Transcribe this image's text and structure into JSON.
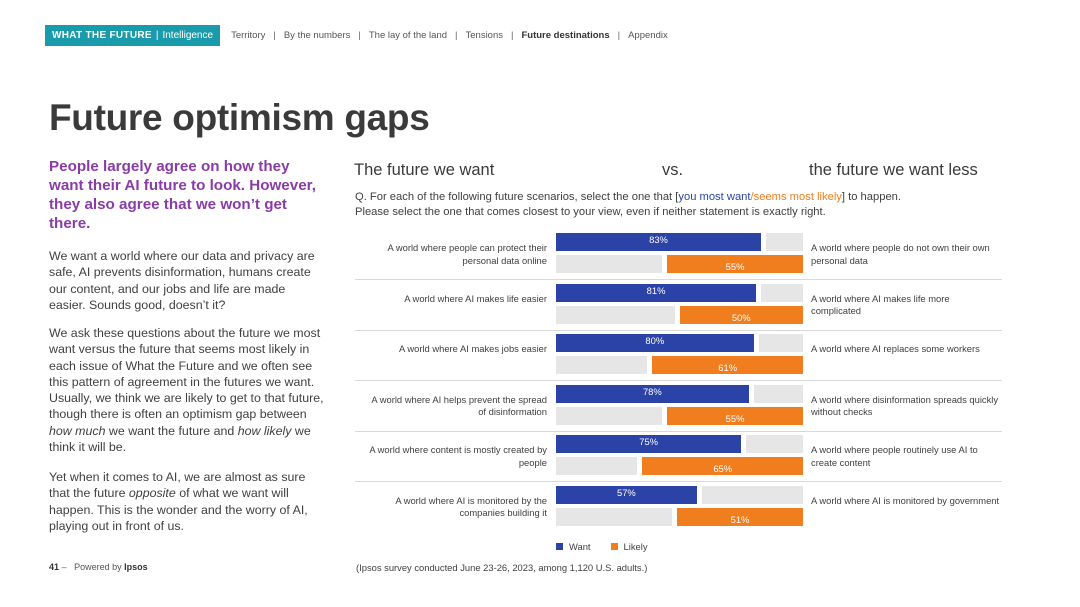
{
  "header": {
    "brand": "WHAT THE FUTURE",
    "brand_sub": "Intelligence",
    "nav": [
      {
        "label": "Territory",
        "active": false
      },
      {
        "label": "By the numbers",
        "active": false
      },
      {
        "label": "The lay of the land",
        "active": false
      },
      {
        "label": "Tensions",
        "active": false
      },
      {
        "label": "Future destinations",
        "active": true
      },
      {
        "label": "Appendix",
        "active": false
      }
    ]
  },
  "page_title": "Future optimism gaps",
  "lede": "People largely agree on how they want their AI future to look. However, they also agree that we won’t get there.",
  "body": {
    "p1": "We want a world where our data and privacy are safe, AI prevents disinformation, humans create our content, and our jobs and life are made easier. Sounds good, doesn’t it?",
    "p2_a": "We ask these questions about the future we most want versus the future that seems most likely in each issue of What the Future and we often see this pattern of agreement in the futures we want. Usually, we think we are likely to get to that future, though there is often an optimism gap between ",
    "p2_em1": "how much",
    "p2_b": " we want the future and ",
    "p2_em2": "how likely",
    "p2_c": " we think it will be.",
    "p3_a": "Yet when it comes to AI, we are almost as sure that the future ",
    "p3_em": "opposite",
    "p3_b": " of what we want will happen. This is the wonder and the worry of AI, playing out in front of us."
  },
  "footer": {
    "page": "41",
    "dash": "–",
    "powered": "Powered by",
    "company": "Ipsos"
  },
  "chart_data": {
    "type": "bar",
    "title_left": "The future we want",
    "title_vs": "vs.",
    "title_right": "the future we want less",
    "question_prefix": "Q. For each of the following future scenarios, select the one that [",
    "question_want": "you most want",
    "question_slash": "/",
    "question_likely": "seems most likely",
    "question_suffix": "] to happen.",
    "question_line2": "Please select the one that comes closest to your view, even if neither statement is exactly right.",
    "unit": "%",
    "xlim": [
      0,
      100
    ],
    "rows": [
      {
        "left": "A world where people can protect their personal data online",
        "right": "A world where people do not own their own personal data",
        "want": 83,
        "likely": 55
      },
      {
        "left": "A world where AI makes life easier",
        "right": "A world where AI makes life more complicated",
        "want": 81,
        "likely": 50
      },
      {
        "left": "A world where AI makes jobs easier",
        "right": "A world where AI replaces some workers",
        "want": 80,
        "likely": 61
      },
      {
        "left": "A world where AI helps prevent the spread of disinformation",
        "right": "A world where disinformation spreads quickly without checks",
        "want": 78,
        "likely": 55
      },
      {
        "left": "A world where content is mostly created by people",
        "right": "A world where people routinely use AI to create content",
        "want": 75,
        "likely": 65
      },
      {
        "left": "A world where AI is monitored by the companies building it",
        "right": "A world where AI is monitored by government",
        "want": 57,
        "likely": 51
      }
    ],
    "legend": [
      {
        "name": "Want",
        "color": "#2b42a6"
      },
      {
        "name": "Likely",
        "color": "#f07d1e"
      }
    ],
    "source": "(Ipsos survey conducted June 23-26, 2023, among 1,120 U.S. adults.)"
  }
}
